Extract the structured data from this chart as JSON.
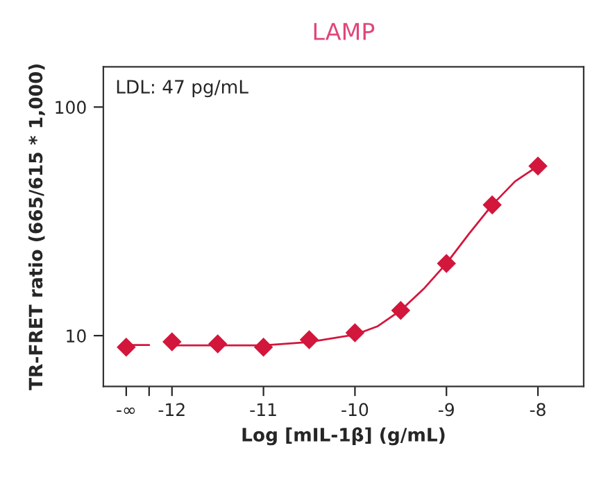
{
  "chart_data": {
    "type": "scatter",
    "title": "LAMP",
    "xlabel": "Log [mIL-1β] (g/mL)",
    "ylabel": "TR-FRET ratio (665/615 * 1,000)",
    "annotations": [
      "LDL: 47 pg/mL"
    ],
    "log": "y",
    "grid": false,
    "marker": "diamond",
    "xlim": [
      -12.75,
      -7.5
    ],
    "xticks": [
      {
        "value": -12.5,
        "label": "-∞"
      },
      {
        "value": -12.25,
        "label": null
      },
      -12,
      -11,
      -10,
      -9,
      -8
    ],
    "ylim": [
      6,
      150
    ],
    "yticks": [
      10,
      100
    ],
    "series": [
      {
        "color": "#d3163c",
        "x": [
          -12.5,
          -12,
          -11.5,
          -11,
          -10.5,
          -10,
          -9.5,
          -9,
          -8.5,
          -8
        ],
        "values": [
          8.9,
          9.4,
          9.2,
          8.9,
          9.6,
          10.3,
          12.9,
          20.7,
          37.3,
          55.2
        ]
      },
      {
        "type": "line",
        "color": "#d3163c",
        "line_style": "solid",
        "marker": "none",
        "x": [
          -12.5,
          -12.25,
          -12.1,
          -12,
          -11,
          -10.5,
          -10,
          -9.75,
          -9.5,
          -9.25,
          -9,
          -8.75,
          -8.5,
          -8.25,
          -8
        ],
        "values": [
          9.1,
          9.1,
          null,
          9.07,
          9.07,
          9.37,
          10.1,
          11.0,
          12.9,
          16.0,
          20.7,
          28.0,
          37.3,
          47.3,
          55.2
        ]
      }
    ]
  }
}
